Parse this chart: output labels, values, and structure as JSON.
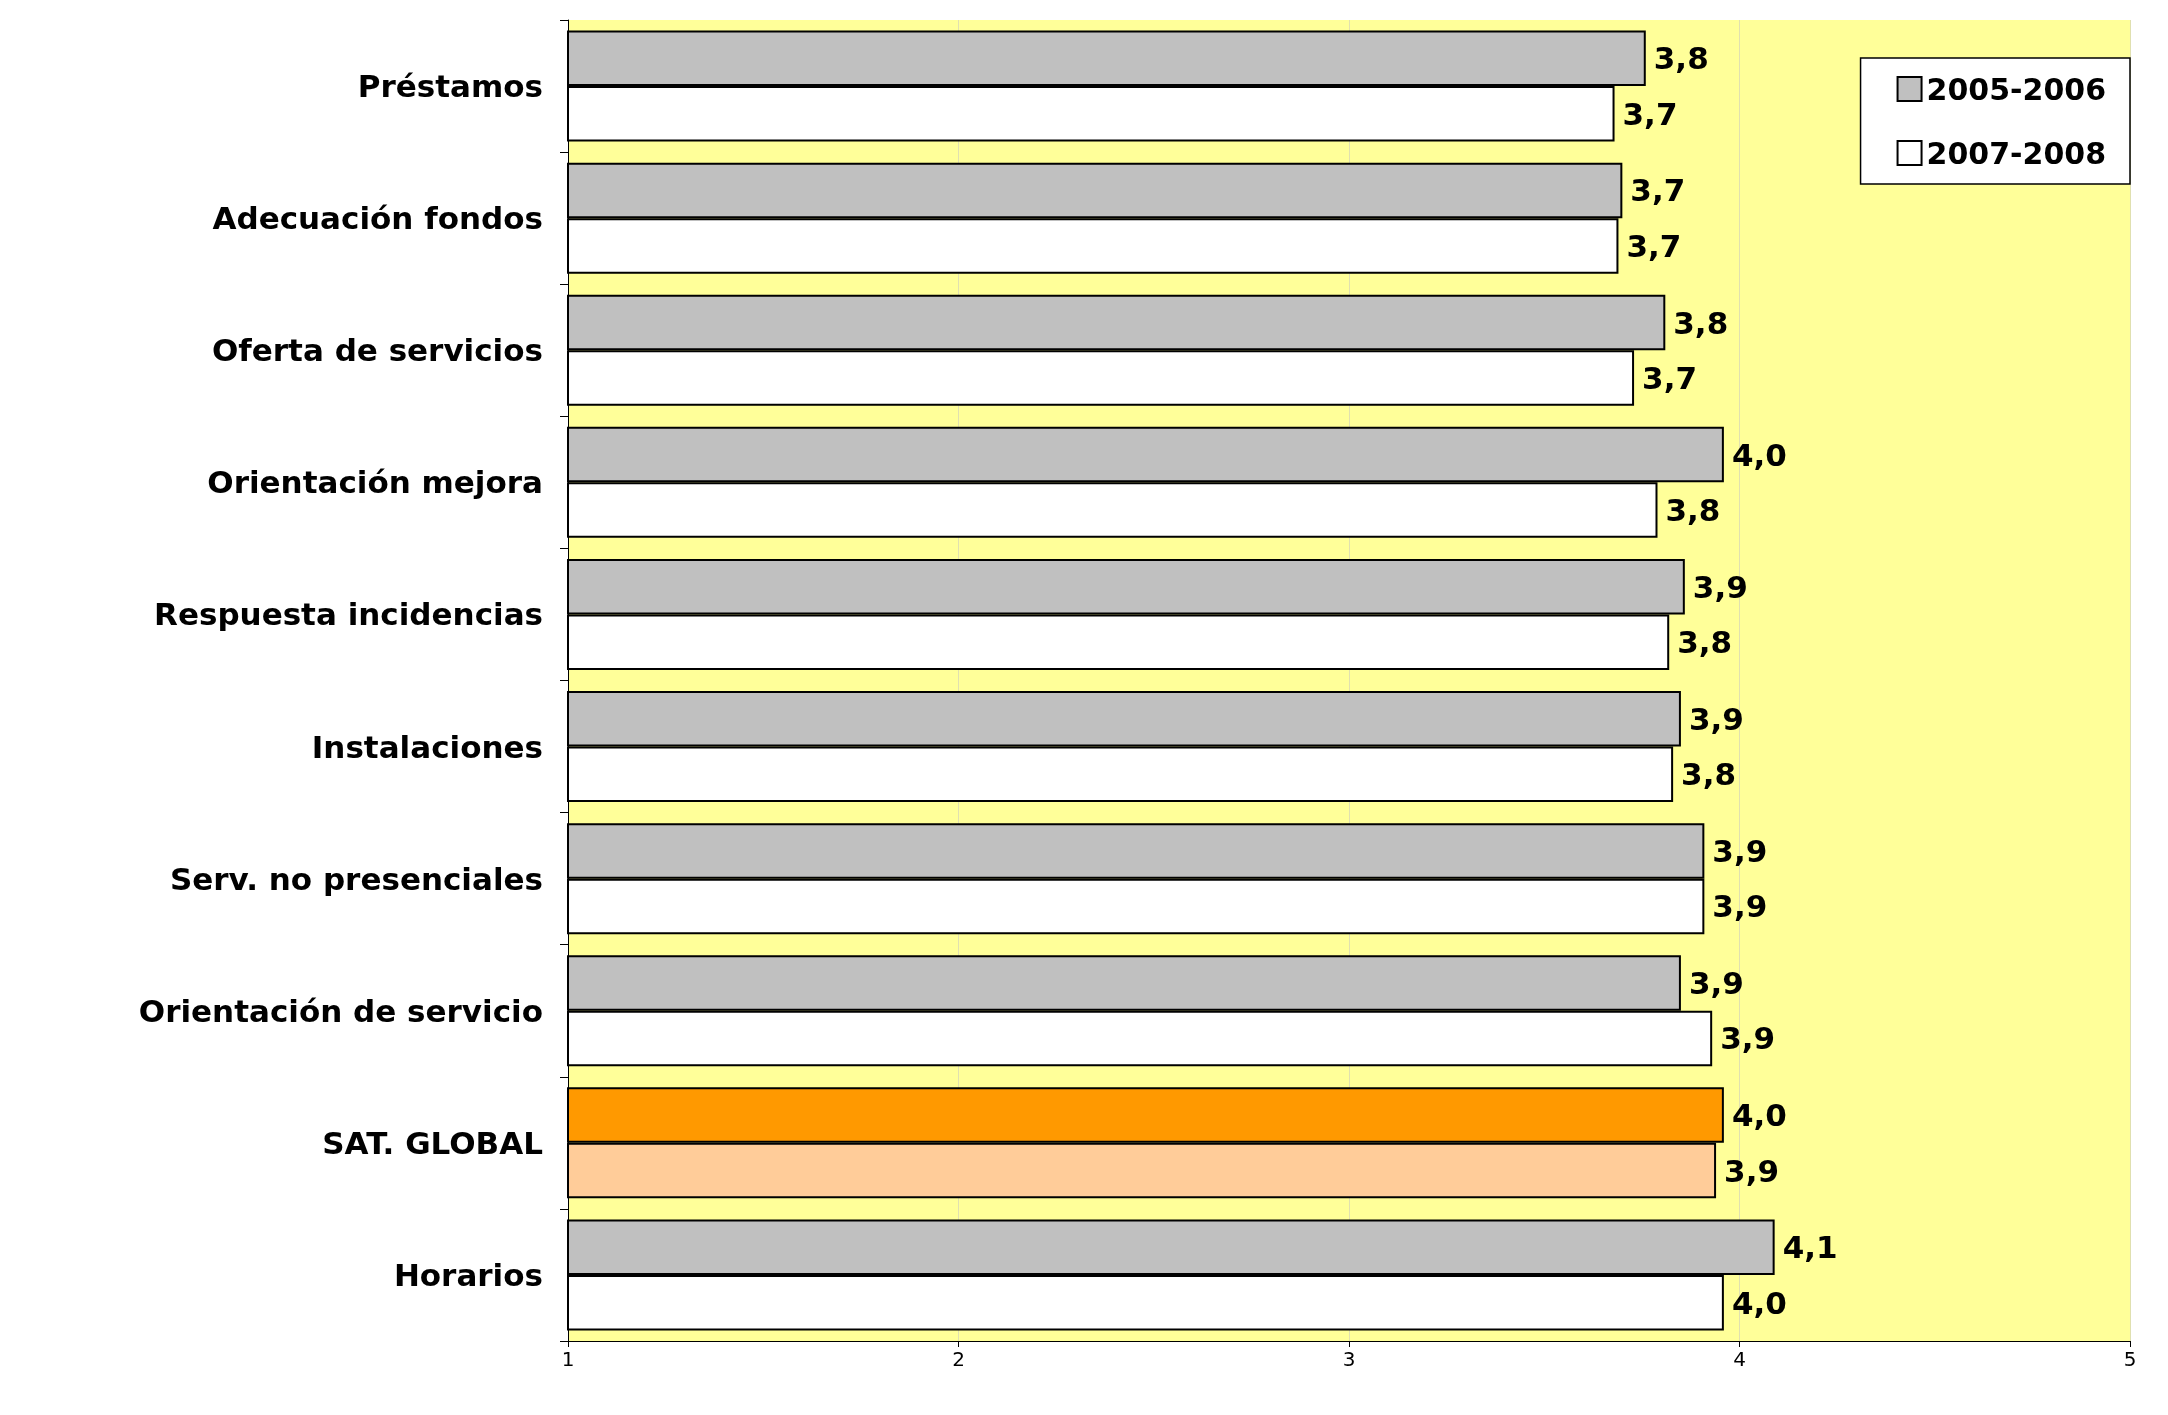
{
  "chart_data": {
    "type": "bar",
    "orientation": "horizontal",
    "categories": [
      "Préstamos",
      "Adecuación fondos",
      "Oferta de servicios",
      "Orientación mejora",
      "Respuesta incidencias",
      "Instalaciones",
      "Serv. no presenciales",
      "Orientación de servicio",
      "SAT. GLOBAL",
      "Horarios"
    ],
    "series": [
      {
        "name": "2005-2006",
        "color": "#c0c0c0",
        "colors": [
          "#c0c0c0",
          "#c0c0c0",
          "#c0c0c0",
          "#c0c0c0",
          "#c0c0c0",
          "#c0c0c0",
          "#c0c0c0",
          "#c0c0c0",
          "#ff9900",
          "#c0c0c0"
        ],
        "values": [
          3.76,
          3.7,
          3.81,
          3.96,
          3.86,
          3.85,
          3.91,
          3.85,
          3.96,
          4.09
        ],
        "value_labels": [
          "3,8",
          "3,7",
          "3,8",
          "4,0",
          "3,9",
          "3,9",
          "3,9",
          "3,9",
          "4,0",
          "4,1"
        ]
      },
      {
        "name": "2007-2008",
        "color": "#ffffff",
        "colors": [
          "#ffffff",
          "#ffffff",
          "#ffffff",
          "#ffffff",
          "#ffffff",
          "#ffffff",
          "#ffffff",
          "#ffffff",
          "#ffcc99",
          "#ffffff"
        ],
        "values": [
          3.68,
          3.69,
          3.73,
          3.79,
          3.82,
          3.83,
          3.91,
          3.93,
          3.94,
          3.96
        ],
        "value_labels": [
          "3,7",
          "3,7",
          "3,7",
          "3,8",
          "3,8",
          "3,8",
          "3,9",
          "3,9",
          "3,9",
          "4,0"
        ]
      }
    ],
    "xlim": [
      1,
      5
    ],
    "xticks": [
      1,
      2,
      3,
      4,
      5
    ],
    "grid": "x",
    "legend": "top right"
  }
}
